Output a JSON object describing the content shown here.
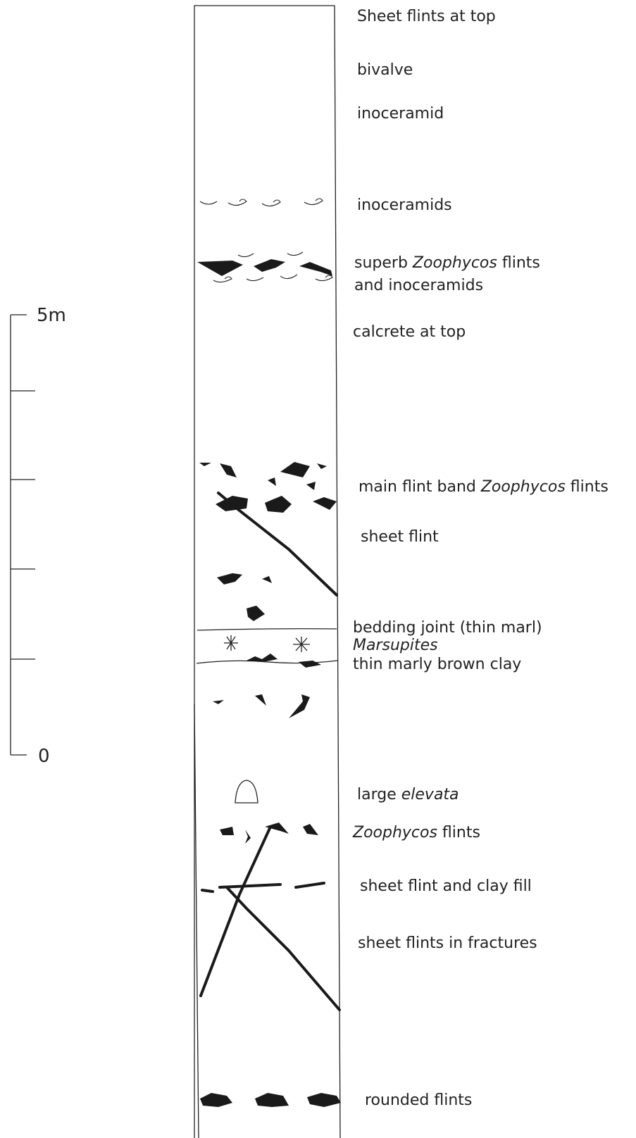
{
  "scale": {
    "top_label": "5m",
    "bottom_label": "0"
  },
  "labels": [
    {
      "segments": [
        {
          "text": "Sheet flints at top"
        }
      ]
    },
    {
      "segments": [
        {
          "text": "bivalve"
        }
      ]
    },
    {
      "segments": [
        {
          "text": "inoceramid"
        }
      ]
    },
    {
      "segments": [
        {
          "text": "inoceramids"
        }
      ]
    },
    {
      "segments": [
        {
          "text": "superb "
        },
        {
          "text": "Zoophycos",
          "style": "italic"
        },
        {
          "text": " flints"
        }
      ]
    },
    {
      "segments": [
        {
          "text": "and inoceramids"
        }
      ]
    },
    {
      "segments": [
        {
          "text": "calcrete at top"
        }
      ]
    },
    {
      "segments": [
        {
          "text": "main flint band "
        },
        {
          "text": "Zoophycos",
          "style": "italic"
        },
        {
          "text": " flints"
        }
      ]
    },
    {
      "segments": [
        {
          "text": "sheet flint"
        }
      ]
    },
    {
      "segments": [
        {
          "text": "bedding joint (thin marl)"
        }
      ]
    },
    {
      "segments": [
        {
          "text": "Marsupites",
          "style": "italic"
        }
      ]
    },
    {
      "segments": [
        {
          "text": "thin marly brown clay"
        }
      ]
    },
    {
      "segments": [
        {
          "text": "large "
        },
        {
          "text": "elevata",
          "style": "italic"
        }
      ]
    },
    {
      "segments": [
        {
          "text": "Zoophycos",
          "style": "italic"
        },
        {
          "text": " flints"
        }
      ]
    },
    {
      "segments": [
        {
          "text": "sheet flint and clay fill"
        }
      ]
    },
    {
      "segments": [
        {
          "text": "sheet flints in fractures"
        }
      ]
    },
    {
      "segments": [
        {
          "text": "rounded flints"
        }
      ]
    }
  ]
}
